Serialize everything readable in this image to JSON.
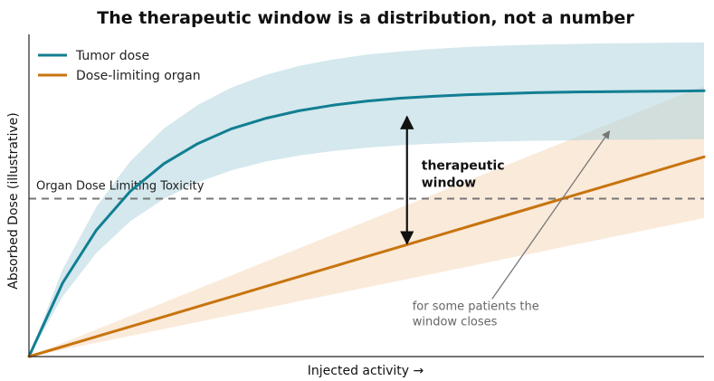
{
  "chart_data": {
    "type": "line",
    "title": "The therapeutic window is a distribution, not a number",
    "xlabel": "Injected activity →",
    "ylabel": "Absorbed Dose (illustrative)",
    "xlim": [
      0,
      10
    ],
    "ylim": [
      0,
      10
    ],
    "grid": false,
    "legend_position": "top-left",
    "x": [
      0,
      0.5,
      1,
      1.5,
      2,
      2.5,
      3,
      3.5,
      4,
      4.5,
      5,
      5.5,
      6,
      6.5,
      7,
      7.5,
      8,
      8.5,
      9,
      9.5,
      10
    ],
    "series": [
      {
        "name": "Tumor dose",
        "color": "#127e92",
        "band_color": "#a9d1db",
        "values": [
          0,
          2.29,
          3.93,
          5.13,
          5.99,
          6.61,
          7.07,
          7.39,
          7.63,
          7.8,
          7.93,
          8.02,
          8.08,
          8.13,
          8.16,
          8.19,
          8.21,
          8.22,
          8.23,
          8.24,
          8.25
        ],
        "band_low": [
          0,
          1.87,
          3.22,
          4.2,
          4.9,
          5.41,
          5.78,
          6.05,
          6.24,
          6.38,
          6.48,
          6.56,
          6.61,
          6.65,
          6.68,
          6.7,
          6.71,
          6.73,
          6.73,
          6.74,
          6.75
        ],
        "band_high": [
          0,
          2.71,
          4.65,
          6.06,
          7.08,
          7.81,
          8.35,
          8.74,
          9.02,
          9.22,
          9.37,
          9.47,
          9.55,
          9.61,
          9.65,
          9.68,
          9.7,
          9.72,
          9.73,
          9.74,
          9.75
        ]
      },
      {
        "name": "Dose-limiting organ",
        "color": "#c8740e",
        "band_color": "#f5d6b6",
        "values": [
          0,
          0.31,
          0.62,
          0.93,
          1.24,
          1.55,
          1.86,
          2.17,
          2.48,
          2.79,
          3.1,
          3.41,
          3.72,
          4.03,
          4.34,
          4.65,
          4.96,
          5.27,
          5.58,
          5.89,
          6.2
        ],
        "band_low": [
          0,
          0.21,
          0.43,
          0.64,
          0.86,
          1.07,
          1.29,
          1.5,
          1.72,
          1.93,
          2.15,
          2.36,
          2.58,
          2.79,
          3.01,
          3.22,
          3.44,
          3.65,
          3.87,
          4.08,
          4.3
        ],
        "band_high": [
          0,
          0.42,
          0.84,
          1.26,
          1.68,
          2.1,
          2.52,
          2.94,
          3.36,
          3.78,
          4.2,
          4.62,
          5.04,
          5.46,
          5.88,
          6.3,
          6.72,
          7.14,
          7.56,
          7.98,
          8.4
        ]
      }
    ],
    "threshold": {
      "label": "Organ Dose Limiting Toxicity",
      "y": 4.9,
      "color": "#777777"
    },
    "window_annotation": {
      "lines": [
        "therapeutic",
        "window"
      ],
      "x": 5.6,
      "y_top": 7.5,
      "y_bottom": 3.45
    },
    "closing_annotation": {
      "lines": [
        "for some patients the",
        "window closes"
      ],
      "text_x": 5.68,
      "text_y": 1.45,
      "arrow_to_x": 8.6,
      "arrow_to_y": 7.0
    }
  }
}
